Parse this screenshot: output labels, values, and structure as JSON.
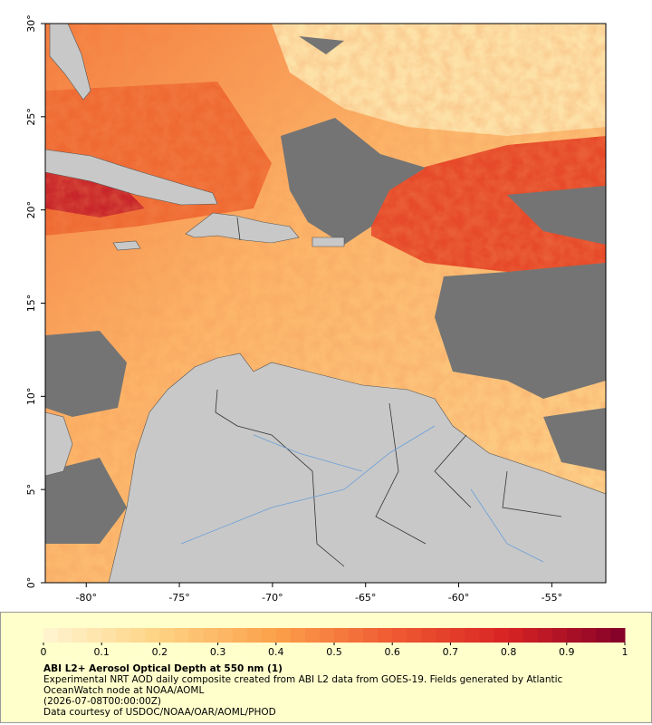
{
  "map": {
    "lon_range": [
      -82.2,
      -52.1
    ],
    "lat_range": [
      0,
      30
    ],
    "lon_ticks": [
      {
        "value": -80,
        "label": "-80°"
      },
      {
        "value": -75,
        "label": "-75°"
      },
      {
        "value": -70,
        "label": "-70°"
      },
      {
        "value": -65,
        "label": "-65°"
      },
      {
        "value": -60,
        "label": "-60°"
      },
      {
        "value": -55,
        "label": "-55°"
      }
    ],
    "lat_ticks": [
      {
        "value": 0,
        "label": "0°"
      },
      {
        "value": 5,
        "label": "5°"
      },
      {
        "value": 10,
        "label": "10°"
      },
      {
        "value": 15,
        "label": "15°"
      },
      {
        "value": 20,
        "label": "20°"
      },
      {
        "value": 25,
        "label": "25°"
      },
      {
        "value": 30,
        "label": "30°"
      }
    ]
  },
  "colorbar": {
    "range": [
      0,
      1
    ],
    "ticks": [
      0,
      0.1,
      0.2,
      0.3,
      0.4,
      0.5,
      0.6,
      0.7,
      0.8,
      0.9,
      1
    ]
  },
  "legend": {
    "title": "ABI L2+ Aerosol Optical Depth at 550 nm (1)",
    "description": "Experimental NRT AOD daily composite created from ABI L2 data from GOES-19. Fields generated by Atlantic OceanWatch node at NOAA/AOML",
    "date": "(2026-07-08T00:00:00Z)",
    "credit": "Data courtesy of USDOC/NOAA/OAR/AOML/PHOD"
  }
}
